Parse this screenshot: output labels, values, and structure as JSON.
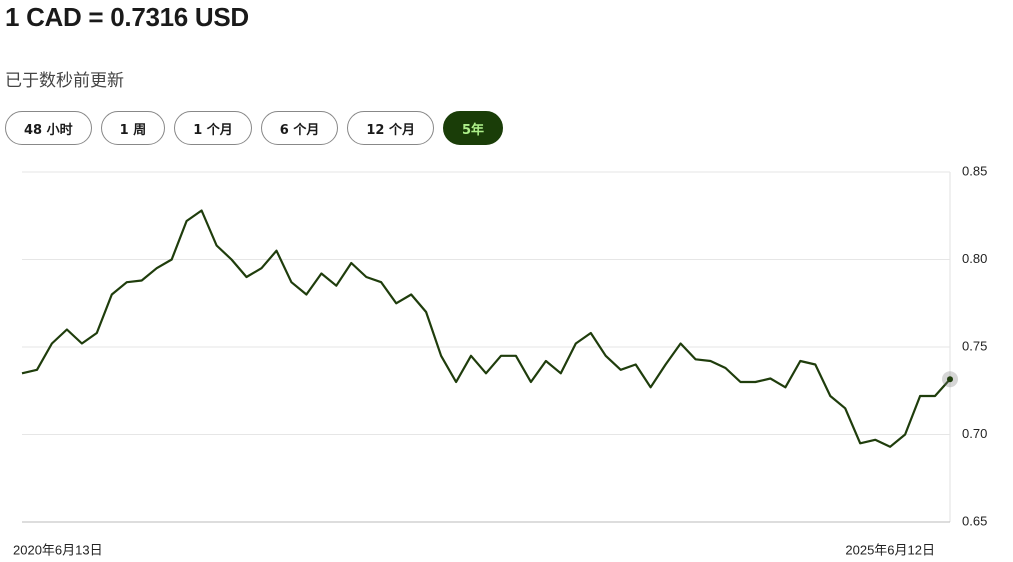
{
  "header": {
    "title": "1 CAD = 0.7316 USD",
    "subtitle": "已于数秒前更新"
  },
  "ranges": {
    "buttons": [
      "48 小时",
      "1 周",
      "1 个月",
      "6 个月",
      "12 个月",
      "5年"
    ],
    "active": 5
  },
  "chart_data": {
    "type": "line",
    "color": "#1f3d0c",
    "categories": [
      "2020年6月13日",
      null,
      null,
      null,
      null,
      null,
      null,
      null,
      null,
      null,
      null,
      null,
      null,
      null,
      null,
      null,
      null,
      null,
      null,
      null,
      null,
      null,
      null,
      null,
      null,
      null,
      null,
      null,
      null,
      null,
      null,
      null,
      null,
      null,
      null,
      null,
      null,
      null,
      null,
      null,
      null,
      null,
      null,
      null,
      null,
      null,
      null,
      null,
      null,
      null,
      null,
      null,
      null,
      null,
      null,
      null,
      null,
      null,
      null,
      null,
      null,
      null,
      "2025年6月12日"
    ],
    "values": [
      0.735,
      0.737,
      0.752,
      0.76,
      0.752,
      0.758,
      0.78,
      0.787,
      0.788,
      0.795,
      0.8,
      0.822,
      0.828,
      0.808,
      0.8,
      0.79,
      0.795,
      0.805,
      0.787,
      0.78,
      0.792,
      0.785,
      0.798,
      0.79,
      0.787,
      0.775,
      0.78,
      0.77,
      0.745,
      0.73,
      0.745,
      0.735,
      0.745,
      0.745,
      0.73,
      0.742,
      0.735,
      0.752,
      0.758,
      0.745,
      0.737,
      0.74,
      0.727,
      0.74,
      0.752,
      0.743,
      0.742,
      0.738,
      0.73,
      0.73,
      0.732,
      0.727,
      0.742,
      0.74,
      0.722,
      0.715,
      0.695,
      0.697,
      0.693,
      0.7,
      0.722,
      0.722,
      0.7316
    ],
    "ylim": [
      0.65,
      0.85
    ],
    "yticks": [
      0.65,
      {
        "value": 0.7,
        "label": "0.70"
      },
      0.75,
      {
        "value": 0.8,
        "label": "0.80"
      },
      0.85
    ],
    "grid": true
  }
}
